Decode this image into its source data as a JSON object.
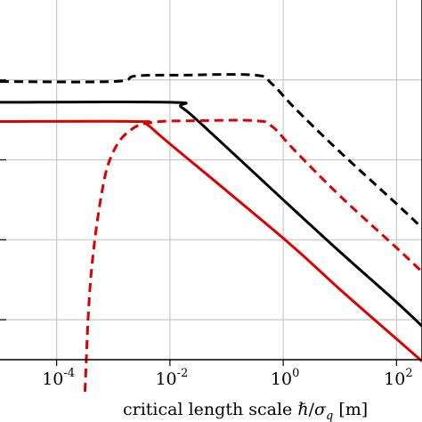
{
  "chart_data": {
    "type": "line",
    "xlabel": "critical length scale ℏ/σ_q [m]",
    "xlabel_parts": {
      "prefix": "critical length scale ",
      "hbar": "ℏ",
      "slash": "/",
      "sigma": "σ",
      "sub": "q",
      "unit": " [m]"
    },
    "xscale": "log",
    "xlim_log10": [
      -5,
      2.45
    ],
    "x_ticks": [
      {
        "base": "10",
        "exp": "-4"
      },
      {
        "base": "10",
        "exp": "-2"
      },
      {
        "base": "10",
        "exp": "0"
      },
      {
        "base": "10",
        "exp": "2"
      }
    ],
    "x_tick_values_log10": [
      -4,
      -2,
      0,
      2
    ],
    "ylim": [
      0,
      4.5
    ],
    "y_grid_values": [
      0.5,
      1.5,
      2.5,
      3.5
    ],
    "grid": true,
    "series": [
      {
        "color": "#000000",
        "style": "dashed",
        "points_log10x": [
          [
            -5,
            3.48
          ],
          [
            -3.0,
            3.48
          ],
          [
            -2.6,
            3.55
          ],
          [
            -1.8,
            3.56
          ],
          [
            -0.5,
            3.56
          ],
          [
            -0.2,
            3.45
          ],
          [
            0.2,
            3.15
          ],
          [
            1.0,
            2.6
          ],
          [
            2.0,
            1.95
          ],
          [
            2.45,
            1.65
          ]
        ]
      },
      {
        "color": "#000000",
        "style": "solid",
        "points_log10x": [
          [
            -5,
            3.22
          ],
          [
            -2.0,
            3.22
          ],
          [
            -1.8,
            3.16
          ],
          [
            -1.4,
            2.92
          ],
          [
            0.0,
            2.0
          ],
          [
            1.0,
            1.35
          ],
          [
            2.0,
            0.72
          ],
          [
            2.45,
            0.42
          ]
        ]
      },
      {
        "color": "#dd0000",
        "style": "solid",
        "points_log10x": [
          [
            -5,
            2.98
          ],
          [
            -2.6,
            2.98
          ],
          [
            -2.4,
            2.94
          ],
          [
            -2.0,
            2.7
          ],
          [
            0.0,
            1.52
          ],
          [
            1.0,
            0.88
          ],
          [
            2.0,
            0.26
          ],
          [
            2.45,
            -0.02
          ]
        ]
      },
      {
        "color": "#dd0000",
        "style": "dashed",
        "points_log10x": [
          [
            -3.5,
            -0.4
          ],
          [
            -3.4,
            1.0
          ],
          [
            -3.2,
            2.1
          ],
          [
            -3.0,
            2.6
          ],
          [
            -2.7,
            2.87
          ],
          [
            -2.3,
            2.97
          ],
          [
            -1.5,
            2.99
          ],
          [
            -0.5,
            2.99
          ],
          [
            -0.2,
            2.92
          ],
          [
            0.2,
            2.62
          ],
          [
            1.0,
            2.05
          ],
          [
            2.0,
            1.4
          ],
          [
            2.45,
            1.1
          ]
        ]
      }
    ]
  }
}
